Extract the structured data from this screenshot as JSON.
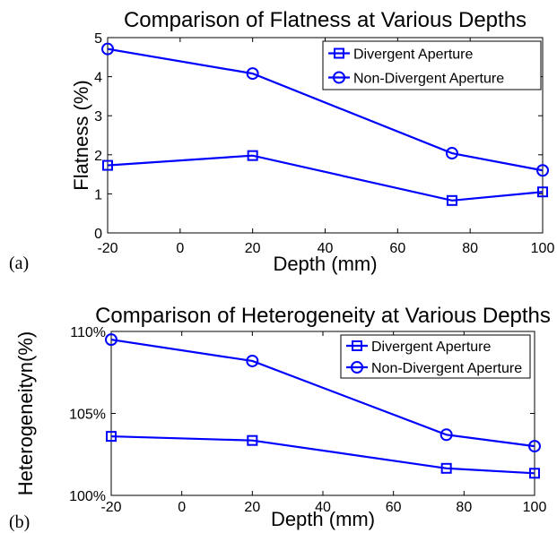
{
  "panel_labels": [
    "(a)",
    "(b)"
  ],
  "chart_data": [
    {
      "type": "line",
      "title": "Comparison of Flatness at Various Depths",
      "xlabel": "Depth (mm)",
      "ylabel": "Flatness (%)",
      "x": [
        -20,
        20,
        75,
        100
      ],
      "xlim": [
        -20,
        100
      ],
      "ylim": [
        0,
        5
      ],
      "xticks": [
        "-20",
        "0",
        "20",
        "40",
        "60",
        "80",
        "100"
      ],
      "yticks": [
        "0",
        "1",
        "2",
        "3",
        "4",
        "5"
      ],
      "grid": false,
      "legend": "top-right",
      "series": [
        {
          "name": "Divergent Aperture",
          "marker": "square",
          "color": "#0000ff",
          "values": [
            1.73,
            1.98,
            0.83,
            1.05
          ]
        },
        {
          "name": "Non-Divergent Aperture",
          "marker": "circle",
          "color": "#0000ff",
          "values": [
            4.71,
            4.08,
            2.04,
            1.6
          ]
        }
      ]
    },
    {
      "type": "line",
      "title": "Comparison of Heterogeneity at Various Depths",
      "xlabel": "Depth (mm)",
      "ylabel": "Heterogeneityn(%)",
      "x": [
        -20,
        20,
        75,
        100
      ],
      "xlim": [
        -20,
        100
      ],
      "ylim": [
        100,
        110
      ],
      "xticks": [
        "-20",
        "0",
        "20",
        "40",
        "60",
        "80",
        "100"
      ],
      "yticks": [
        "100%",
        "105%",
        "110%"
      ],
      "grid": false,
      "legend": "top-right",
      "series": [
        {
          "name": "Divergent Aperture",
          "marker": "square",
          "color": "#0000ff",
          "values": [
            103.6,
            103.35,
            101.65,
            101.35
          ]
        },
        {
          "name": "Non-Divergent Aperture",
          "marker": "circle",
          "color": "#0000ff",
          "values": [
            109.5,
            108.2,
            103.7,
            103.0
          ]
        }
      ]
    }
  ]
}
